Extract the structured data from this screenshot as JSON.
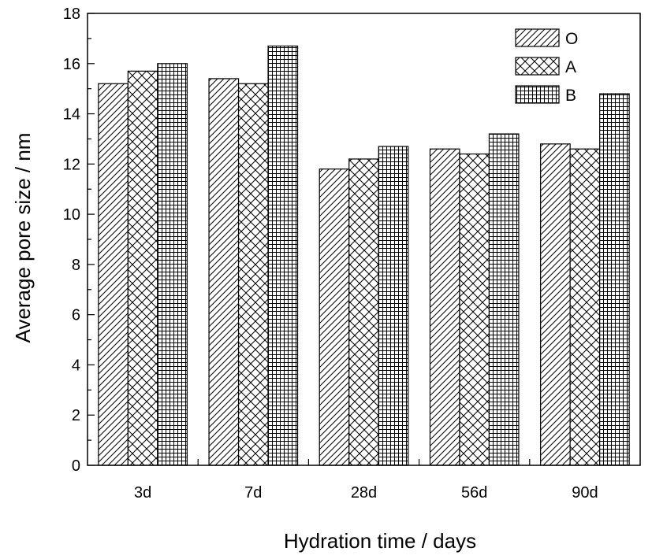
{
  "chart_data": {
    "type": "bar",
    "xlabel": "Hydration time / days",
    "ylabel": "Average pore size / nm",
    "ylim": [
      0,
      18
    ],
    "yticks": [
      0,
      2,
      4,
      6,
      8,
      10,
      12,
      14,
      16,
      18
    ],
    "categories": [
      "3d",
      "7d",
      "28d",
      "56d",
      "90d"
    ],
    "series": [
      {
        "name": "O",
        "pattern": "diagonal-hatch",
        "values": [
          15.2,
          15.4,
          11.8,
          12.6,
          12.8
        ]
      },
      {
        "name": "A",
        "pattern": "cross-hatch",
        "values": [
          15.7,
          15.2,
          12.2,
          12.4,
          12.6
        ]
      },
      {
        "name": "B",
        "pattern": "grid-hatch",
        "values": [
          16.0,
          16.7,
          12.7,
          13.2,
          14.8
        ]
      }
    ],
    "legend_position": "top-right",
    "grid": false,
    "colors": {
      "stroke": "#000000",
      "fill": "#ffffff"
    }
  }
}
